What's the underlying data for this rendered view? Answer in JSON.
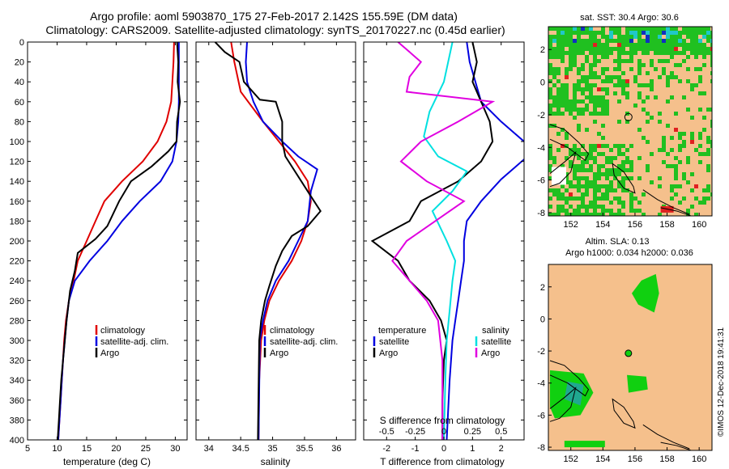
{
  "figure": {
    "title_line1": "Argo profile: aoml 5903870_175 27-Feb-2017 2.142S 155.59E (DM data)",
    "title_line2": "Climatology: CARS2009. Satellite-adjusted climatology: synTS_20170227.nc (0.45d earlier)",
    "footer": "©IMOS 12-Dec-2018 19:41:31"
  },
  "colors": {
    "climatology": "#e00000",
    "satellite": "#0000e0",
    "argo": "#000000",
    "sat_salinity": "#00e0e0",
    "argo_salinity": "#e000e0",
    "land": "#f5c08c",
    "sst_green": "#20c020",
    "ocean_green": "#10d010",
    "teal": "#20a890"
  },
  "depth_axis": {
    "range": [
      0,
      400
    ],
    "ticks": [
      "0",
      "20",
      "40",
      "60",
      "80",
      "100",
      "120",
      "140",
      "160",
      "180",
      "200",
      "220",
      "240",
      "260",
      "280",
      "300",
      "320",
      "340",
      "360",
      "380",
      "400"
    ]
  },
  "chart_data": [
    {
      "type": "line",
      "id": "temperature",
      "xlabel": "temperature (deg C)",
      "xlim": [
        5,
        32
      ],
      "xticks": [
        "5",
        "10",
        "15",
        "20",
        "25",
        "30"
      ],
      "ylim": [
        0,
        400
      ],
      "legend": [
        "climatology",
        "satellite-adj. clim.",
        "Argo"
      ],
      "series": [
        {
          "name": "climatology",
          "color": "#e00000",
          "points": [
            [
              29.8,
              0
            ],
            [
              29.7,
              20
            ],
            [
              29.5,
              40
            ],
            [
              29.3,
              60
            ],
            [
              28.5,
              80
            ],
            [
              27,
              100
            ],
            [
              24.5,
              120
            ],
            [
              21,
              140
            ],
            [
              18,
              160
            ],
            [
              16.5,
              180
            ],
            [
              15,
              200
            ],
            [
              13.5,
              220
            ],
            [
              12.8,
              240
            ],
            [
              12,
              260
            ],
            [
              11.5,
              280
            ],
            [
              11.2,
              300
            ],
            [
              11,
              320
            ],
            [
              10.8,
              340
            ],
            [
              10.6,
              360
            ],
            [
              10.4,
              380
            ],
            [
              10.2,
              400
            ]
          ]
        },
        {
          "name": "satellite",
          "color": "#0000e0",
          "points": [
            [
              30.6,
              0
            ],
            [
              30.6,
              20
            ],
            [
              30.6,
              40
            ],
            [
              30.6,
              60
            ],
            [
              30.5,
              80
            ],
            [
              30.2,
              100
            ],
            [
              29.5,
              120
            ],
            [
              27.5,
              140
            ],
            [
              24,
              160
            ],
            [
              21,
              180
            ],
            [
              18.5,
              200
            ],
            [
              15.5,
              220
            ],
            [
              13,
              240
            ],
            [
              12,
              260
            ],
            [
              11.6,
              280
            ],
            [
              11.3,
              300
            ],
            [
              11,
              320
            ],
            [
              10.8,
              340
            ],
            [
              10.6,
              360
            ],
            [
              10.4,
              380
            ],
            [
              10.2,
              400
            ]
          ]
        },
        {
          "name": "Argo",
          "color": "#000000",
          "points": [
            [
              30.3,
              0
            ],
            [
              30.5,
              20
            ],
            [
              30.4,
              40
            ],
            [
              30.8,
              60
            ],
            [
              30.3,
              80
            ],
            [
              30.2,
              100
            ],
            [
              28.8,
              110
            ],
            [
              26,
              125
            ],
            [
              22.5,
              140
            ],
            [
              20.5,
              160
            ],
            [
              18.5,
              185
            ],
            [
              16.5,
              198
            ],
            [
              13.5,
              212
            ],
            [
              13,
              230
            ],
            [
              12.2,
              250
            ],
            [
              11.6,
              280
            ],
            [
              11.3,
              300
            ],
            [
              11,
              320
            ],
            [
              10.7,
              340
            ],
            [
              10.5,
              360
            ],
            [
              10.3,
              380
            ],
            [
              10.1,
              400
            ]
          ]
        }
      ]
    },
    {
      "type": "line",
      "id": "salinity",
      "xlabel": "salinity",
      "xlim": [
        33.8,
        36.3
      ],
      "xticks": [
        "34",
        "34.5",
        "35",
        "35.5",
        "36"
      ],
      "ylim": [
        0,
        400
      ],
      "legend": [
        "climatology",
        "satellite-adj. clim.",
        "Argo"
      ],
      "series": [
        {
          "name": "climatology",
          "color": "#e00000",
          "points": [
            [
              34.35,
              0
            ],
            [
              34.4,
              20
            ],
            [
              34.5,
              50
            ],
            [
              34.85,
              80
            ],
            [
              35.1,
              100
            ],
            [
              35.35,
              120
            ],
            [
              35.55,
              140
            ],
            [
              35.6,
              160
            ],
            [
              35.55,
              180
            ],
            [
              35.45,
              200
            ],
            [
              35.3,
              220
            ],
            [
              35.1,
              240
            ],
            [
              34.95,
              260
            ],
            [
              34.87,
              280
            ],
            [
              34.82,
              300
            ],
            [
              34.79,
              340
            ],
            [
              34.78,
              400
            ]
          ]
        },
        {
          "name": "satellite",
          "color": "#0000e0",
          "points": [
            [
              34.6,
              0
            ],
            [
              34.58,
              20
            ],
            [
              34.6,
              40
            ],
            [
              34.7,
              60
            ],
            [
              34.85,
              80
            ],
            [
              35.15,
              100
            ],
            [
              35.4,
              115
            ],
            [
              35.7,
              128
            ],
            [
              35.6,
              150
            ],
            [
              35.55,
              180
            ],
            [
              35.4,
              200
            ],
            [
              35.25,
              220
            ],
            [
              35.05,
              240
            ],
            [
              34.92,
              260
            ],
            [
              34.85,
              280
            ],
            [
              34.8,
              300
            ],
            [
              34.78,
              400
            ]
          ]
        },
        {
          "name": "Argo",
          "color": "#000000",
          "points": [
            [
              34.1,
              0
            ],
            [
              34.25,
              10
            ],
            [
              34.48,
              20
            ],
            [
              34.55,
              40
            ],
            [
              34.8,
              58
            ],
            [
              35.05,
              60
            ],
            [
              35.15,
              80
            ],
            [
              35.15,
              100
            ],
            [
              35.2,
              115
            ],
            [
              35.45,
              140
            ],
            [
              35.6,
              155
            ],
            [
              35.75,
              170
            ],
            [
              35.55,
              185
            ],
            [
              35.3,
              195
            ],
            [
              35.15,
              210
            ],
            [
              35.05,
              225
            ],
            [
              34.95,
              245
            ],
            [
              34.88,
              260
            ],
            [
              34.82,
              280
            ],
            [
              34.79,
              300
            ],
            [
              34.77,
              400
            ]
          ]
        }
      ]
    },
    {
      "type": "line",
      "id": "difference",
      "xlabel": "T difference from climatology",
      "xlabel_top": "S difference from climatology",
      "xlim": [
        -2.8,
        2.8
      ],
      "xticks": [
        "-2",
        "-1",
        "0",
        "1",
        "2"
      ],
      "xticks_top": [
        "-0.5",
        "-0.25",
        "0",
        "0.25",
        "0.5"
      ],
      "ylim": [
        0,
        400
      ],
      "legend": [
        "temperature",
        "satellite",
        "Argo",
        "salinity",
        "satellite",
        "Argo"
      ],
      "series": [
        {
          "name": "temperature satellite",
          "color": "#0000e0",
          "points": [
            [
              0.8,
              0
            ],
            [
              0.9,
              20
            ],
            [
              1.1,
              40
            ],
            [
              1.3,
              60
            ],
            [
              2,
              80
            ],
            [
              2.8,
              100
            ]
          ]
        },
        {
          "name": "temperature satellite deep",
          "color": "#0000e0",
          "points": [
            [
              2.8,
              118
            ],
            [
              2,
              138
            ],
            [
              1.3,
              160
            ],
            [
              0.8,
              180
            ],
            [
              0.7,
              200
            ],
            [
              0.7,
              220
            ],
            [
              0.6,
              240
            ],
            [
              0.5,
              260
            ],
            [
              0.4,
              280
            ],
            [
              0.3,
              300
            ],
            [
              0.2,
              340
            ],
            [
              0.1,
              400
            ]
          ]
        },
        {
          "name": "temperature Argo",
          "color": "#000000",
          "points": [
            [
              1,
              0
            ],
            [
              1.15,
              20
            ],
            [
              1,
              40
            ],
            [
              1.3,
              60
            ],
            [
              1.6,
              80
            ],
            [
              1.7,
              100
            ],
            [
              1.3,
              120
            ],
            [
              0.5,
              140
            ],
            [
              -0.8,
              160
            ],
            [
              -1.2,
              180
            ],
            [
              -2.5,
              200
            ],
            [
              -1.6,
              220
            ],
            [
              -1.2,
              240
            ],
            [
              -0.5,
              260
            ],
            [
              -0.1,
              280
            ],
            [
              0.1,
              300
            ],
            [
              0,
              320
            ],
            [
              -0.05,
              360
            ],
            [
              -0.05,
              400
            ]
          ]
        },
        {
          "name": "salinity satellite",
          "color": "#00e0e0",
          "points": [
            [
              0.3,
              0
            ],
            [
              0.15,
              20
            ],
            [
              0,
              40
            ],
            [
              -0.5,
              70
            ],
            [
              -0.7,
              95
            ],
            [
              -0.2,
              115
            ],
            [
              0.8,
              130
            ],
            [
              0.3,
              150
            ],
            [
              -0.4,
              170
            ],
            [
              0.1,
              200
            ],
            [
              0.4,
              220
            ],
            [
              0.3,
              240
            ],
            [
              0.2,
              270
            ],
            [
              0.1,
              300
            ],
            [
              0.05,
              340
            ],
            [
              0,
              400
            ]
          ]
        },
        {
          "name": "salinity Argo",
          "color": "#e000e0",
          "points": [
            [
              -1.6,
              0
            ],
            [
              -1.2,
              10
            ],
            [
              -0.8,
              20
            ],
            [
              -1.2,
              35
            ],
            [
              -1.3,
              50
            ],
            [
              1.7,
              60
            ],
            [
              0.5,
              80
            ],
            [
              -0.8,
              100
            ],
            [
              -1.5,
              120
            ],
            [
              -0.6,
              140
            ],
            [
              0.7,
              160
            ],
            [
              -1.3,
              200
            ],
            [
              -1.8,
              220
            ],
            [
              -1.2,
              240
            ],
            [
              -0.6,
              260
            ],
            [
              -0.2,
              280
            ],
            [
              -0.05,
              320
            ],
            [
              -0.05,
              400
            ]
          ]
        }
      ]
    }
  ],
  "maps": {
    "sst": {
      "title": "sat. SST: 30.4 Argo: 30.6",
      "xticks": [
        "152",
        "154",
        "156",
        "158",
        "160"
      ],
      "yticks": [
        "2",
        "0",
        "-2",
        "-4",
        "-6",
        "-8"
      ],
      "marker": {
        "lon": 155.59,
        "lat": -2.142
      }
    },
    "sla": {
      "title_line1": "Altim. SLA: 0.13",
      "title_line2": "Argo h1000: 0.034 h2000: 0.036",
      "xticks": [
        "152",
        "154",
        "156",
        "158",
        "160"
      ],
      "yticks": [
        "2",
        "0",
        "-2",
        "-4",
        "-6",
        "-8"
      ],
      "marker": {
        "lon": 155.59,
        "lat": -2.142
      }
    }
  }
}
